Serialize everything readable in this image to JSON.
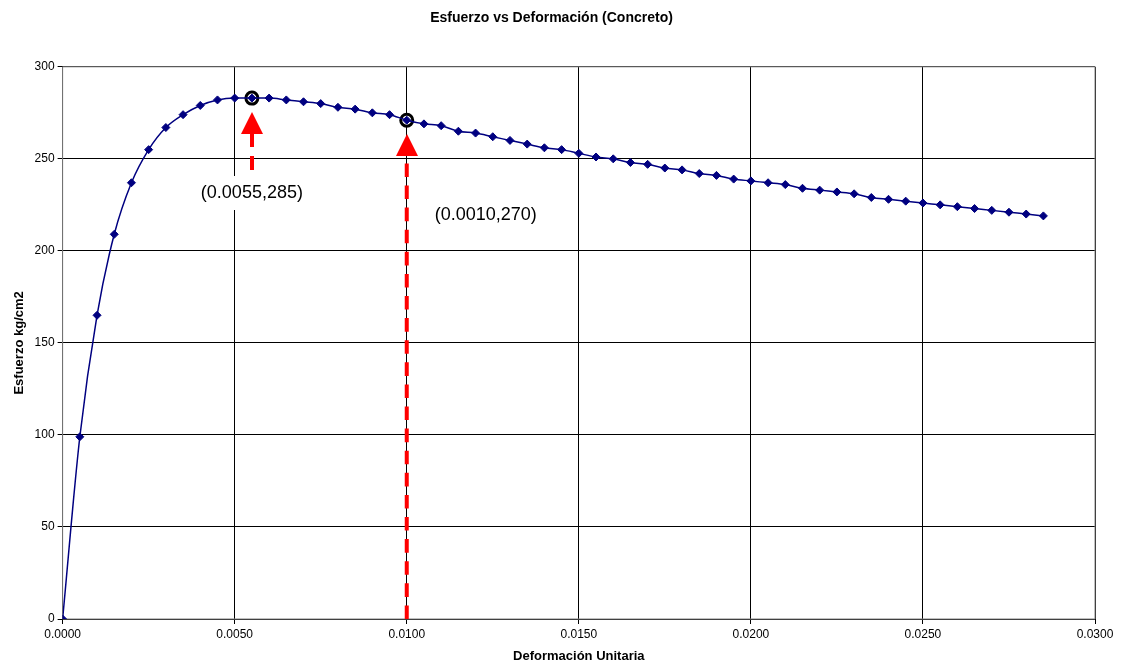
{
  "chart_data": {
    "type": "line",
    "title": "Esfuerzo vs Deformación (Concreto)",
    "xlabel": "Deformación Unitaria",
    "ylabel": "Esfuerzo kg/cm2",
    "xlim": [
      0,
      0.03
    ],
    "xticks": [
      {
        "value": 0,
        "label": "0.0000"
      },
      {
        "value": 0.005,
        "label": "0.0050"
      },
      {
        "value": 0.01,
        "label": "0.0100"
      },
      {
        "value": 0.015,
        "label": "0.0150"
      },
      {
        "value": 0.02,
        "label": "0.0200"
      },
      {
        "value": 0.025,
        "label": "0.0250"
      },
      {
        "value": 0.03,
        "label": "0.0300"
      }
    ],
    "ylim": [
      0,
      300
    ],
    "yticks": [
      0,
      50,
      100,
      150,
      200,
      250,
      300
    ],
    "grid": true,
    "marker": "diamond",
    "line_style": "solid",
    "series": [
      {
        "color": "#000080",
        "x": [
          0,
          0.0005,
          0.001,
          0.0015,
          0.002,
          0.0025,
          0.003,
          0.0035,
          0.004,
          0.0045,
          0.005,
          0.0055,
          0.006,
          0.0065,
          0.007,
          0.0075,
          0.008,
          0.0085,
          0.009,
          0.0095,
          0.01,
          0.0105,
          0.011,
          0.0115,
          0.012,
          0.0125,
          0.013,
          0.0135,
          0.014,
          0.0145,
          0.015,
          0.0155,
          0.016,
          0.0165,
          0.017,
          0.0175,
          0.018,
          0.0185,
          0.019,
          0.0195,
          0.02,
          0.0205,
          0.021,
          0.0215,
          0.022,
          0.0225,
          0.023,
          0.0235,
          0.024,
          0.0245,
          0.025,
          0.0255,
          0.026,
          0.0265,
          0.027,
          0.0275,
          0.028,
          0.0285
        ],
        "values": [
          0,
          99,
          165,
          209,
          237,
          255,
          267,
          274,
          279,
          282,
          283,
          283,
          283,
          282,
          281,
          280,
          278,
          277,
          275,
          274,
          271,
          269,
          268,
          265,
          264,
          262,
          260,
          258,
          256,
          255,
          253,
          251,
          250,
          248,
          247,
          245,
          244,
          242,
          241,
          239,
          238,
          237,
          236,
          234,
          233,
          232,
          231,
          229,
          228,
          227,
          226,
          225,
          224,
          223,
          222,
          221,
          220,
          219
        ]
      },
      {
        "type": "scatter",
        "color": "#000000",
        "marker": "circle",
        "x": [
          0.0055,
          0.01
        ],
        "values": [
          283,
          271
        ]
      }
    ],
    "ref_lines": [
      {
        "axis": "x",
        "value": 0.01,
        "color": "#ff0000",
        "line_style": "dashed"
      }
    ],
    "annotations": [
      "(0.0055,285)",
      "(0.0010,270)"
    ]
  }
}
